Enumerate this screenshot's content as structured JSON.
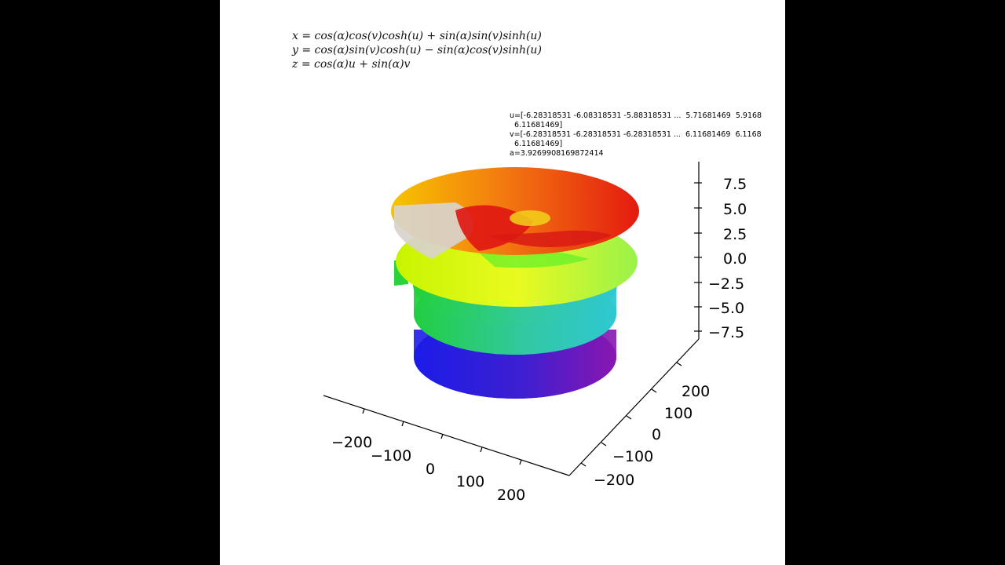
{
  "equations": {
    "x": "x = cos(α)cos(v)cosh(u) + sin(α)sin(v)sinh(u)",
    "y": "y = cos(α)sin(v)cosh(u) − sin(α)cos(v)sinh(u)",
    "z": "z = cos(α)u + sin(α)v"
  },
  "parameters": {
    "u_line1": "u=[-6.28318531 -6.08318531 -5.88318531 ...  5.71681469  5.9168",
    "u_line2": "  6.11681469]",
    "v_line1": "v=[-6.28318531 -6.28318531 -6.28318531 ...  6.11681469  6.1168",
    "v_line2": "  6.11681469]",
    "a_line": "a=3.9269908169872414"
  },
  "axes": {
    "z_ticks": [
      "7.5",
      "5.0",
      "2.5",
      "0.0",
      "−2.5",
      "−5.0",
      "−7.5"
    ],
    "x_ticks": [
      "−200",
      "−100",
      "0",
      "100",
      "200"
    ],
    "y_ticks": [
      "200",
      "100",
      "0",
      "−100",
      "−200"
    ]
  },
  "colors": {
    "background": "#000000",
    "plot_bg": "#ffffff"
  }
}
